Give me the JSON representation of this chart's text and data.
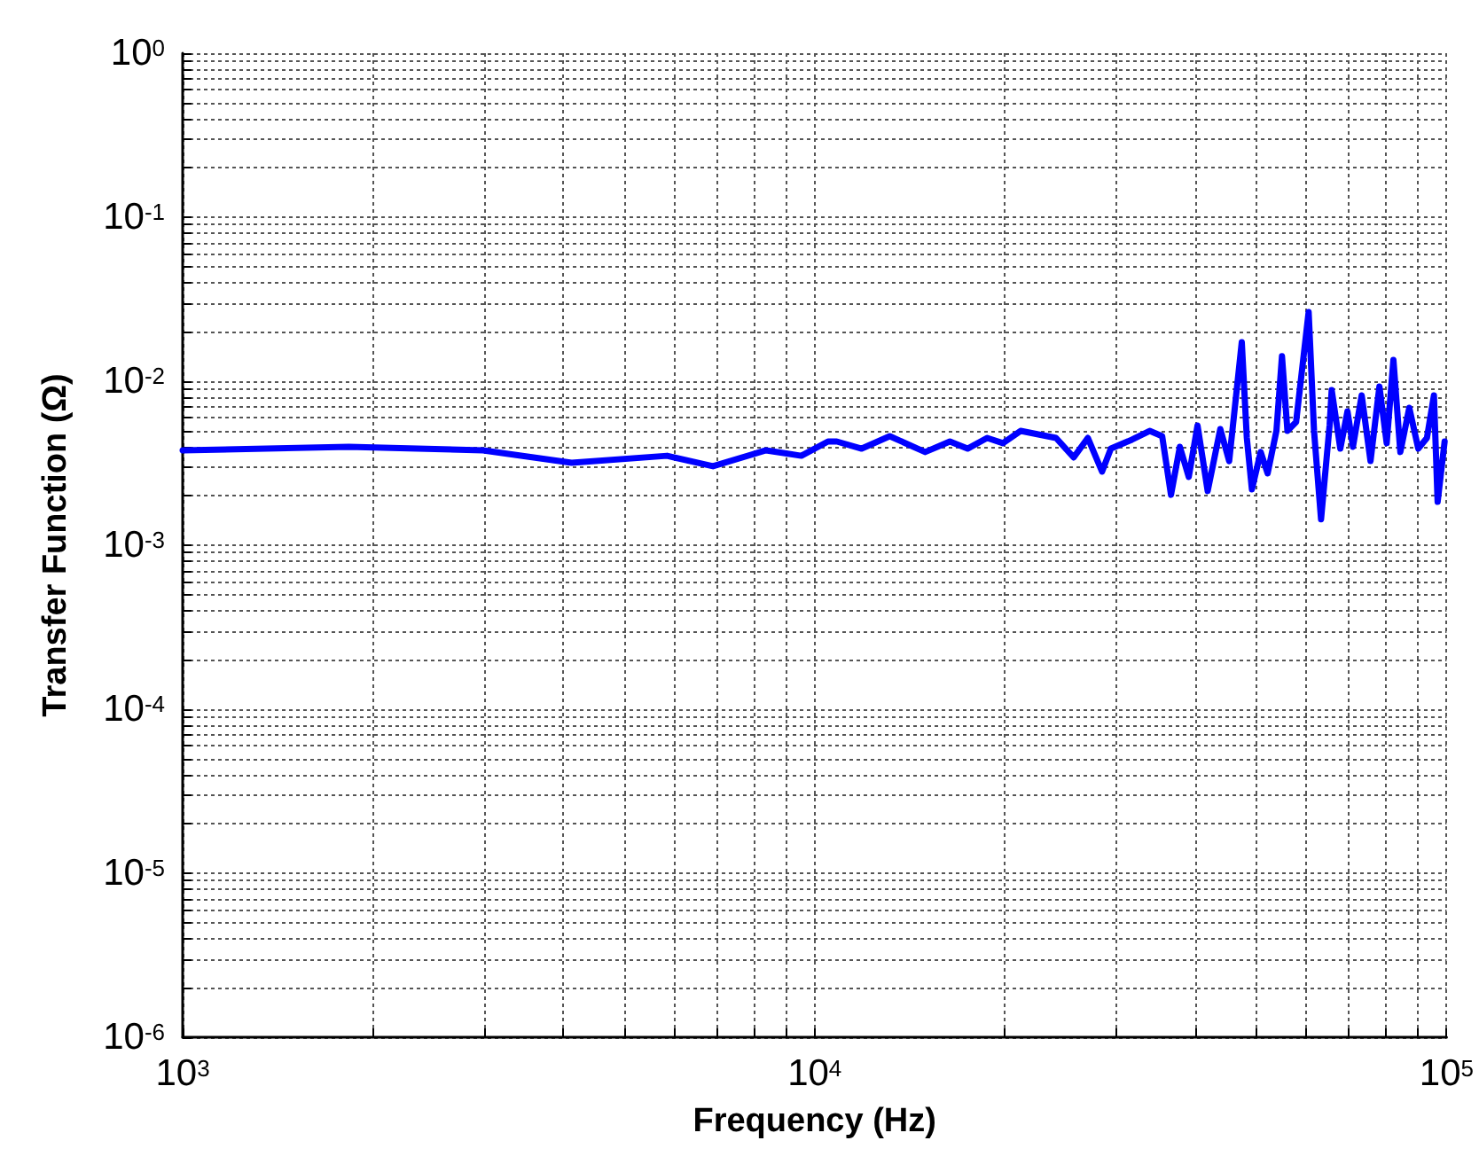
{
  "chart_data": {
    "type": "line",
    "xlabel": "Frequency (Hz)",
    "ylabel": "Transfer Function (Ω)",
    "x": [
      1000,
      1832,
      2988,
      4125,
      5841,
      6905,
      8377,
      9528,
      10500,
      10840,
      11870,
      13150,
      14960,
      16370,
      17460,
      18750,
      19860,
      21180,
      24100,
      25700,
      27060,
      28500,
      29430,
      31780,
      33900,
      35480,
      36640,
      37840,
      39090,
      40360,
      41880,
      43850,
      45290,
      47420,
      48300,
      49200,
      50800,
      52100,
      53800,
      54900,
      56000,
      57800,
      60500,
      61700,
      63300,
      65300,
      65800,
      67900,
      69700,
      71100,
      73400,
      75800,
      78300,
      80400,
      82400,
      84500,
      87300,
      90200,
      93100,
      95500,
      96800,
      99300
    ],
    "series": [
      {
        "color": "#0000ff",
        "values": [
          0.00379,
          0.00398,
          0.00379,
          0.00318,
          0.00351,
          0.00303,
          0.00379,
          0.00351,
          0.00429,
          0.00429,
          0.00388,
          0.00462,
          0.0037,
          0.00429,
          0.00388,
          0.00451,
          0.00419,
          0.00498,
          0.00451,
          0.00343,
          0.00451,
          0.00281,
          0.00388,
          0.0044,
          0.00498,
          0.00462,
          0.00203,
          0.00398,
          0.00261,
          0.00537,
          0.00214,
          0.00511,
          0.00326,
          0.0173,
          0.00451,
          0.00219,
          0.0037,
          0.00274,
          0.00498,
          0.0142,
          0.00498,
          0.00564,
          0.0264,
          0.00498,
          0.00144,
          0.00537,
          0.00883,
          0.00388,
          0.00655,
          0.00398,
          0.0082,
          0.00326,
          0.00929,
          0.00419,
          0.0135,
          0.0037,
          0.00689,
          0.00388,
          0.00451,
          0.0082,
          0.00184,
          0.00429
        ]
      }
    ],
    "log": "xy",
    "grid": true,
    "marker": "none",
    "line_style": "solid",
    "xlim": [
      1000,
      100000
    ],
    "xticks": [
      {
        "value": 1000,
        "label": "10$^{3}$"
      },
      {
        "value": 2000,
        "label": null
      },
      {
        "value": 3000,
        "label": null
      },
      {
        "value": 4000,
        "label": null
      },
      {
        "value": 5000,
        "label": null
      },
      {
        "value": 6000,
        "label": null
      },
      {
        "value": 7000,
        "label": null
      },
      {
        "value": 8000,
        "label": null
      },
      {
        "value": 9000,
        "label": null
      },
      {
        "value": 10000,
        "label": "10$^{4}$"
      },
      {
        "value": 20000,
        "label": null
      },
      {
        "value": 30000,
        "label": null
      },
      {
        "value": 40000,
        "label": null
      },
      {
        "value": 50000,
        "label": null
      },
      {
        "value": 60000,
        "label": null
      },
      {
        "value": 70000,
        "label": null
      },
      {
        "value": 80000,
        "label": null
      },
      {
        "value": 90000,
        "label": null
      },
      {
        "value": 100000,
        "label": "10$^{5}$"
      }
    ],
    "ylim": [
      1e-06,
      1
    ],
    "yticks": [
      {
        "value": 1e-06,
        "label": "10$^{-6}$"
      },
      {
        "value": 2e-06,
        "label": null
      },
      {
        "value": 3e-06,
        "label": null
      },
      {
        "value": 4e-06,
        "label": null
      },
      {
        "value": 5e-06,
        "label": null
      },
      {
        "value": 6e-06,
        "label": null
      },
      {
        "value": 7e-06,
        "label": null
      },
      {
        "value": 8e-06,
        "label": null
      },
      {
        "value": 9e-06,
        "label": null
      },
      {
        "value": 1e-05,
        "label": "10$^{-5}$"
      },
      {
        "value": 2e-05,
        "label": null
      },
      {
        "value": 3e-05,
        "label": null
      },
      {
        "value": 4e-05,
        "label": null
      },
      {
        "value": 5e-05,
        "label": null
      },
      {
        "value": 6e-05,
        "label": null
      },
      {
        "value": 7e-05,
        "label": null
      },
      {
        "value": 8e-05,
        "label": null
      },
      {
        "value": 9e-05,
        "label": null
      },
      {
        "value": 0.0001,
        "label": "10$^{-4}$"
      },
      {
        "value": 0.0002,
        "label": null
      },
      {
        "value": 0.0003,
        "label": null
      },
      {
        "value": 0.0004,
        "label": null
      },
      {
        "value": 0.0005,
        "label": null
      },
      {
        "value": 0.0006,
        "label": null
      },
      {
        "value": 0.0007,
        "label": null
      },
      {
        "value": 0.0008,
        "label": null
      },
      {
        "value": 0.0009,
        "label": null
      },
      {
        "value": 0.001,
        "label": "10$^{-3}$"
      },
      {
        "value": 0.002,
        "label": null
      },
      {
        "value": 0.003,
        "label": null
      },
      {
        "value": 0.004,
        "label": null
      },
      {
        "value": 0.005,
        "label": null
      },
      {
        "value": 0.006,
        "label": null
      },
      {
        "value": 0.007,
        "label": null
      },
      {
        "value": 0.008,
        "label": null
      },
      {
        "value": 0.009,
        "label": null
      },
      {
        "value": 0.01,
        "label": "10$^{-2}$"
      },
      {
        "value": 0.02,
        "label": null
      },
      {
        "value": 0.03,
        "label": null
      },
      {
        "value": 0.04,
        "label": null
      },
      {
        "value": 0.05,
        "label": null
      },
      {
        "value": 0.06,
        "label": null
      },
      {
        "value": 0.07,
        "label": null
      },
      {
        "value": 0.08,
        "label": null
      },
      {
        "value": 0.09,
        "label": null
      },
      {
        "value": 0.1,
        "label": "10$^{-1}$"
      },
      {
        "value": 0.2,
        "label": null
      },
      {
        "value": 0.3,
        "label": null
      },
      {
        "value": 0.4,
        "label": null
      },
      {
        "value": 0.5,
        "label": null
      },
      {
        "value": 0.6,
        "label": null
      },
      {
        "value": 0.7,
        "label": null
      },
      {
        "value": 0.8,
        "label": null
      },
      {
        "value": 0.9,
        "label": null
      },
      {
        "value": 1,
        "label": "10$^{0}$"
      }
    ]
  }
}
